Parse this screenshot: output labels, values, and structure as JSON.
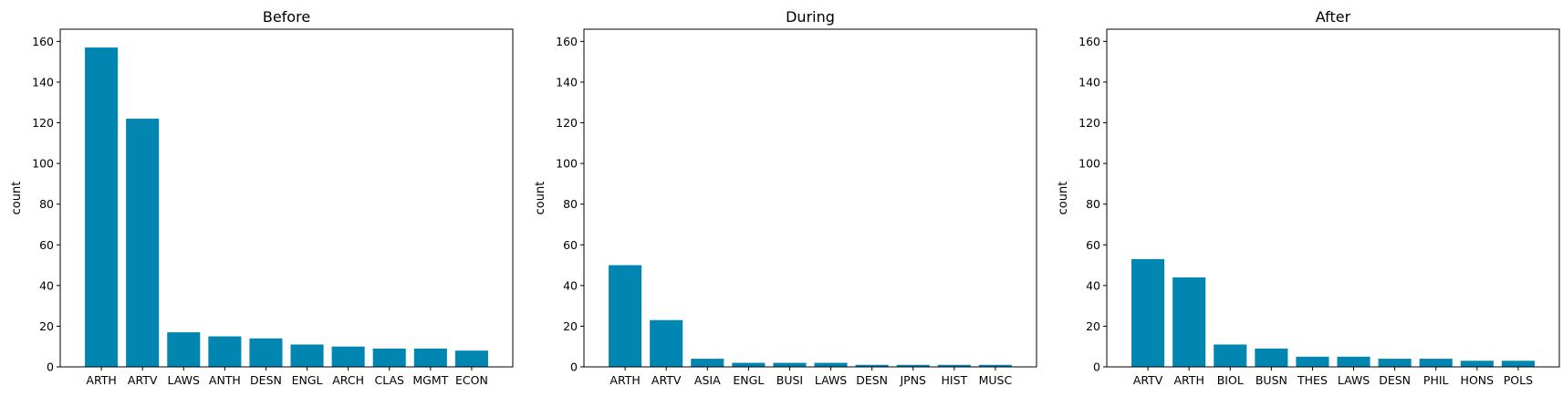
{
  "colors": {
    "bar": "#0086b0",
    "axis": "#000000",
    "background": "#ffffff"
  },
  "chart_data": [
    {
      "type": "bar",
      "title": "Before",
      "xlabel": "",
      "ylabel": "count",
      "ylim": [
        0,
        166
      ],
      "yticks": [
        0,
        20,
        40,
        60,
        80,
        100,
        120,
        140,
        160
      ],
      "grid": false,
      "categories": [
        "ARTH",
        "ARTV",
        "LAWS",
        "ANTH",
        "DESN",
        "ENGL",
        "ARCH",
        "CLAS",
        "MGMT",
        "ECON"
      ],
      "values": [
        157,
        122,
        17,
        15,
        14,
        11,
        10,
        9,
        9,
        8
      ]
    },
    {
      "type": "bar",
      "title": "During",
      "xlabel": "",
      "ylabel": "count",
      "ylim": [
        0,
        166
      ],
      "yticks": [
        0,
        20,
        40,
        60,
        80,
        100,
        120,
        140,
        160
      ],
      "grid": false,
      "categories": [
        "ARTH",
        "ARTV",
        "ASIA",
        "ENGL",
        "BUSI",
        "LAWS",
        "DESN",
        "JPNS",
        "HIST",
        "MUSC"
      ],
      "values": [
        50,
        23,
        4,
        2,
        2,
        2,
        1,
        1,
        1,
        1
      ]
    },
    {
      "type": "bar",
      "title": "After",
      "xlabel": "",
      "ylabel": "count",
      "ylim": [
        0,
        166
      ],
      "yticks": [
        0,
        20,
        40,
        60,
        80,
        100,
        120,
        140,
        160
      ],
      "grid": false,
      "categories": [
        "ARTV",
        "ARTH",
        "BIOL",
        "BUSN",
        "THES",
        "LAWS",
        "DESN",
        "PHIL",
        "HONS",
        "POLS"
      ],
      "values": [
        53,
        44,
        11,
        9,
        5,
        5,
        4,
        4,
        3,
        3
      ]
    }
  ]
}
